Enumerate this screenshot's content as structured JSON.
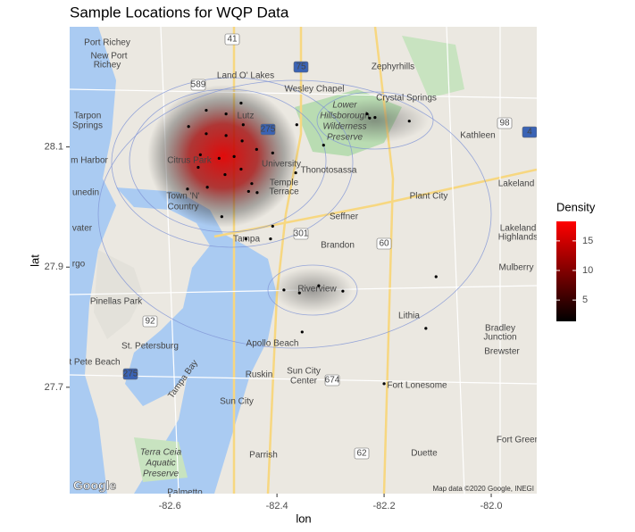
{
  "chart_data": {
    "type": "scatter",
    "title": "Sample Locations for WQP Data",
    "x_label": "lon",
    "y_label": "lat",
    "x": [
      -82.467,
      -82.532,
      -82.495,
      -82.463,
      -82.565,
      -82.532,
      -82.495,
      -82.465,
      -82.438,
      -82.408,
      -82.543,
      -82.508,
      -82.48,
      -82.547,
      -82.467,
      -82.497,
      -82.447,
      -82.437,
      -82.567,
      -82.53,
      -82.453,
      -82.363,
      -82.313,
      -82.365,
      -82.232,
      -82.227,
      -82.217,
      -82.153,
      -82.503,
      -82.458,
      -82.412,
      -82.387,
      -82.358,
      -82.322,
      -82.277,
      -82.103,
      -82.122,
      -82.353,
      -82.2,
      -82.408
    ],
    "y": [
      28.173,
      28.161,
      28.155,
      28.137,
      28.134,
      28.122,
      28.119,
      28.11,
      28.096,
      28.09,
      28.087,
      28.081,
      28.084,
      28.066,
      28.063,
      28.054,
      28.039,
      28.024,
      28.03,
      28.033,
      28.026,
      28.137,
      28.103,
      28.057,
      28.155,
      28.148,
      28.149,
      28.143,
      27.984,
      27.947,
      27.947,
      27.862,
      27.857,
      27.869,
      27.86,
      27.884,
      27.798,
      27.792,
      27.706,
      27.968
    ],
    "color": "#000000",
    "xlim": [
      -82.787,
      -81.915
    ],
    "ylim": [
      27.523,
      28.3
    ],
    "xticks": [
      -82.6,
      -82.4,
      -82.2,
      {
        "value": -82,
        "label": "-82.0"
      }
    ],
    "yticks": [
      27.7,
      27.9,
      28.1
    ],
    "color_scale": {
      "title": "Density",
      "limits": [
        1.4,
        18.3
      ],
      "ticks": [
        5,
        10,
        15
      ],
      "colors": [
        "#000000",
        "#ff0000"
      ]
    },
    "map_labels": [
      "Port Richey",
      "New Port",
      "Richey",
      "Land O' Lakes",
      "Zephyrhills",
      "Wesley Chapel",
      "Crystal Springs",
      "Tarpon",
      "Springs",
      "Lutz",
      "Lower",
      "Hillsborough",
      "Wilderness",
      "Preserve",
      "Kathleen",
      "m Harbor",
      "Citrus Park",
      "University",
      "Thonotosassa",
      "unedin",
      "Temple",
      "Terrace",
      "Plant City",
      "Lakeland",
      "Town 'N'",
      "Country",
      "Seffner",
      "vater",
      "Tampa",
      "Brandon",
      "Lakeland",
      "Highlands",
      "rgo",
      "Mulberry",
      "Riverview",
      "Pinellas Park",
      "Lithia",
      "Bradley",
      "Junction",
      "St. Petersburg",
      "Apollo Beach",
      "Brewster",
      "t Pete Beach",
      "Ruskin",
      "Sun City",
      "Center",
      "Tampa Bay",
      "Fort Lonesome",
      "Sun City",
      "Fort Green",
      "Parrish",
      "Duette",
      "Terra Ceia",
      "Aquatic",
      "Preserve",
      "Palmetto",
      "75",
      "275",
      "4",
      "41",
      "589",
      "301",
      "60",
      "98",
      "92",
      "275",
      "674",
      "62"
    ],
    "attribution": [
      "Google",
      "Map data ©2020 Google, INEGI"
    ]
  }
}
